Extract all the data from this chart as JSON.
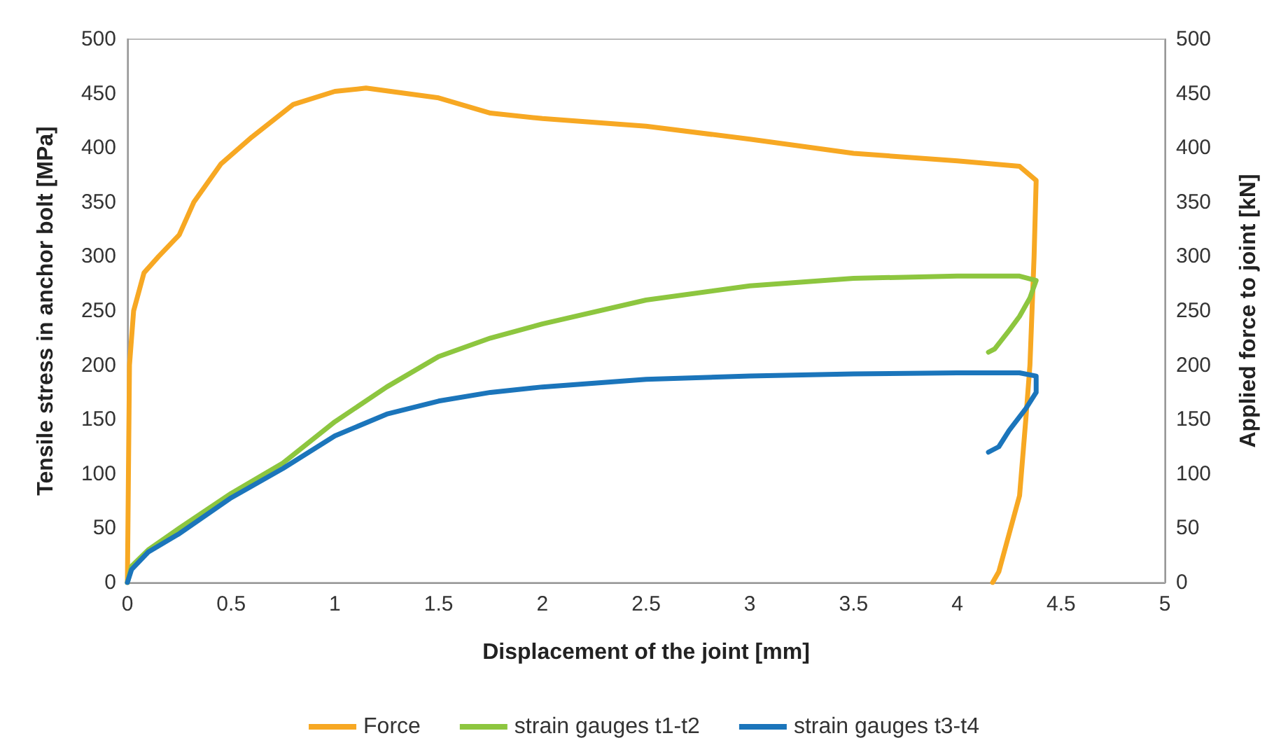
{
  "chart_data": {
    "type": "line",
    "xlabel": "Displacement of the joint [mm]",
    "ylabel": "Tensile stress in anchor bolt [MPa]",
    "y2label": "Applied force to joint [kN]",
    "xlim": [
      0,
      5
    ],
    "xticks": [
      0,
      0.5,
      1,
      1.5,
      2,
      2.5,
      3,
      3.5,
      4,
      4.5,
      5
    ],
    "ylim": [
      0,
      500
    ],
    "yticks": [
      0,
      50,
      100,
      150,
      200,
      250,
      300,
      350,
      400,
      450,
      500
    ],
    "y2lim": [
      0,
      500
    ],
    "y2ticks": [
      0,
      50,
      100,
      150,
      200,
      250,
      300,
      350,
      400,
      450,
      500
    ],
    "grid": false,
    "legend": "bottom",
    "marker": "none",
    "line_style": "solid",
    "series": [
      {
        "name": "Force",
        "color": "#f7a823",
        "axis": "y2",
        "x": [
          0,
          0.01,
          0.03,
          0.08,
          0.15,
          0.25,
          0.32,
          0.45,
          0.6,
          0.8,
          1.0,
          1.15,
          1.5,
          1.75,
          2,
          2.5,
          3,
          3.5,
          4,
          4.3,
          4.38,
          4.37,
          4.35,
          4.33,
          4.3,
          4.25,
          4.2,
          4.17
        ],
        "values": [
          0,
          200,
          250,
          285,
          300,
          320,
          350,
          385,
          410,
          440,
          452,
          455,
          446,
          432,
          427,
          420,
          408,
          395,
          388,
          383,
          370,
          300,
          200,
          150,
          80,
          45,
          10,
          0
        ]
      },
      {
        "name": "strain gauges t1-t2",
        "color": "#8dc63f",
        "x": [
          0,
          0.02,
          0.1,
          0.25,
          0.5,
          0.75,
          1,
          1.25,
          1.5,
          1.75,
          2,
          2.5,
          3,
          3.5,
          4,
          4.3,
          4.38,
          4.35,
          4.3,
          4.25,
          4.18,
          4.15
        ],
        "values": [
          0,
          15,
          30,
          50,
          82,
          110,
          148,
          180,
          208,
          225,
          238,
          260,
          273,
          280,
          282,
          282,
          278,
          262,
          245,
          232,
          215,
          212
        ]
      },
      {
        "name": "strain gauges t3-t4",
        "color": "#1b75bb",
        "x": [
          0,
          0.02,
          0.1,
          0.25,
          0.5,
          0.75,
          1,
          1.25,
          1.5,
          1.75,
          2,
          2.5,
          3,
          3.5,
          4,
          4.3,
          4.38,
          4.38,
          4.33,
          4.25,
          4.2,
          4.15
        ],
        "values": [
          0,
          12,
          28,
          45,
          78,
          105,
          135,
          155,
          167,
          175,
          180,
          187,
          190,
          192,
          193,
          193,
          190,
          175,
          160,
          140,
          125,
          120
        ]
      }
    ]
  }
}
